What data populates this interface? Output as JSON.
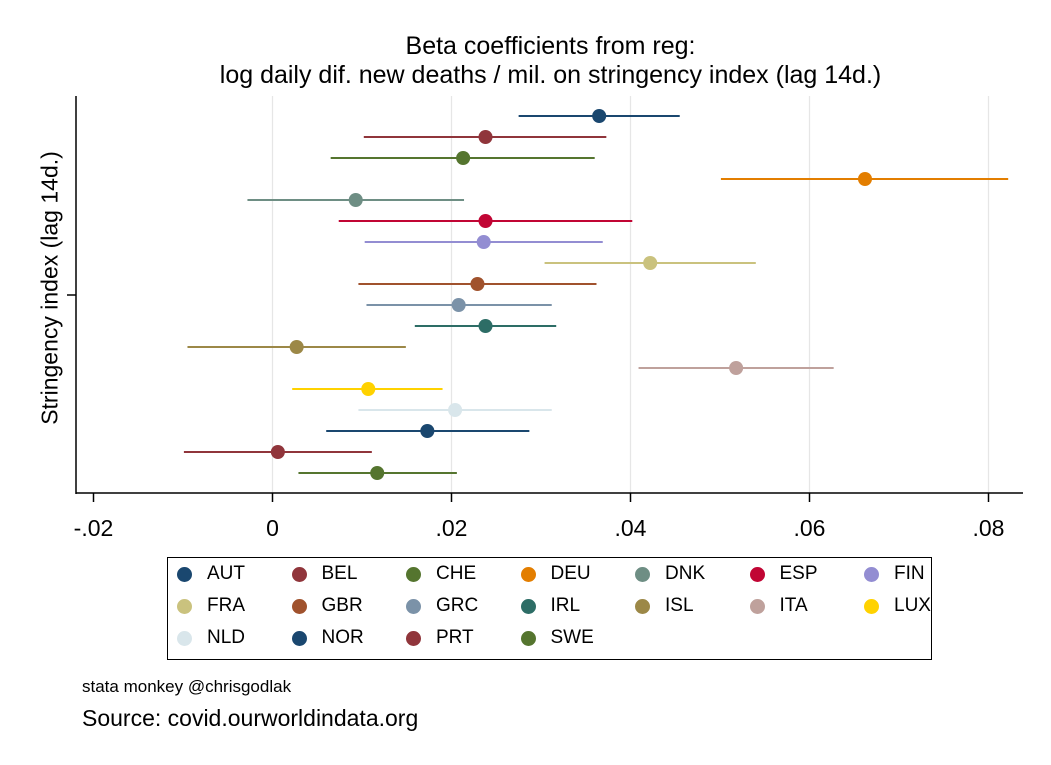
{
  "chart_data": {
    "type": "scatter",
    "title": "Beta coefficients from reg:",
    "subtitle": "log daily dif. new deaths / mil. on stringency index (lag 14d.)",
    "xlabel": "",
    "ylabel": "Stringency index (lag 14d.)",
    "xlim": [
      -0.022,
      0.084
    ],
    "x_ticks": [
      -0.02,
      0,
      0.02,
      0.04,
      0.06,
      0.08
    ],
    "x_tick_labels": [
      "-.02",
      "0",
      ".02",
      ".04",
      ".06",
      ".08"
    ],
    "grid": "vertical",
    "legend_position": "bottom",
    "legend_columns": 7,
    "series": [
      {
        "name": "AUT",
        "color": "#1a476f",
        "beta": 0.0365,
        "ci": [
          0.0275,
          0.0455
        ]
      },
      {
        "name": "BEL",
        "color": "#90353b",
        "beta": 0.0238,
        "ci": [
          0.0102,
          0.0373
        ]
      },
      {
        "name": "CHE",
        "color": "#55752f",
        "beta": 0.0213,
        "ci": [
          0.0065,
          0.036
        ]
      },
      {
        "name": "DEU",
        "color": "#e37e00",
        "beta": 0.0662,
        "ci": [
          0.0501,
          0.0822
        ]
      },
      {
        "name": "DNK",
        "color": "#6e8e84",
        "beta": 0.0093,
        "ci": [
          -0.0028,
          0.0214
        ]
      },
      {
        "name": "ESP",
        "color": "#c10534",
        "beta": 0.0238,
        "ci": [
          0.0074,
          0.0402
        ]
      },
      {
        "name": "FIN",
        "color": "#938dd2",
        "beta": 0.0236,
        "ci": [
          0.0103,
          0.0369
        ]
      },
      {
        "name": "FRA",
        "color": "#cac27e",
        "beta": 0.0422,
        "ci": [
          0.0304,
          0.054
        ]
      },
      {
        "name": "GBR",
        "color": "#a0522d",
        "beta": 0.0229,
        "ci": [
          0.0096,
          0.0362
        ]
      },
      {
        "name": "GRC",
        "color": "#7b92a8",
        "beta": 0.0208,
        "ci": [
          0.0105,
          0.0312
        ]
      },
      {
        "name": "IRL",
        "color": "#2d6d66",
        "beta": 0.0238,
        "ci": [
          0.0159,
          0.0317
        ]
      },
      {
        "name": "ISL",
        "color": "#9c8847",
        "beta": 0.0027,
        "ci": [
          -0.0095,
          0.0149
        ]
      },
      {
        "name": "ITA",
        "color": "#bfa19c",
        "beta": 0.0518,
        "ci": [
          0.0409,
          0.0627
        ]
      },
      {
        "name": "LUX",
        "color": "#ffd200",
        "beta": 0.0107,
        "ci": [
          0.0022,
          0.019
        ]
      },
      {
        "name": "NLD",
        "color": "#d9e6eb",
        "beta": 0.0204,
        "ci": [
          0.0096,
          0.0312
        ]
      },
      {
        "name": "NOR",
        "color": "#1a476f",
        "beta": 0.0173,
        "ci": [
          0.006,
          0.0287
        ]
      },
      {
        "name": "PRT",
        "color": "#90353b",
        "beta": 0.0006,
        "ci": [
          -0.0099,
          0.0111
        ]
      },
      {
        "name": "SWE",
        "color": "#55752f",
        "beta": 0.0117,
        "ci": [
          0.0029,
          0.0206
        ]
      }
    ]
  },
  "notes": {
    "credit": "stata monkey @chrisgodlak",
    "source": "Source: covid.ourworldindata.org"
  }
}
